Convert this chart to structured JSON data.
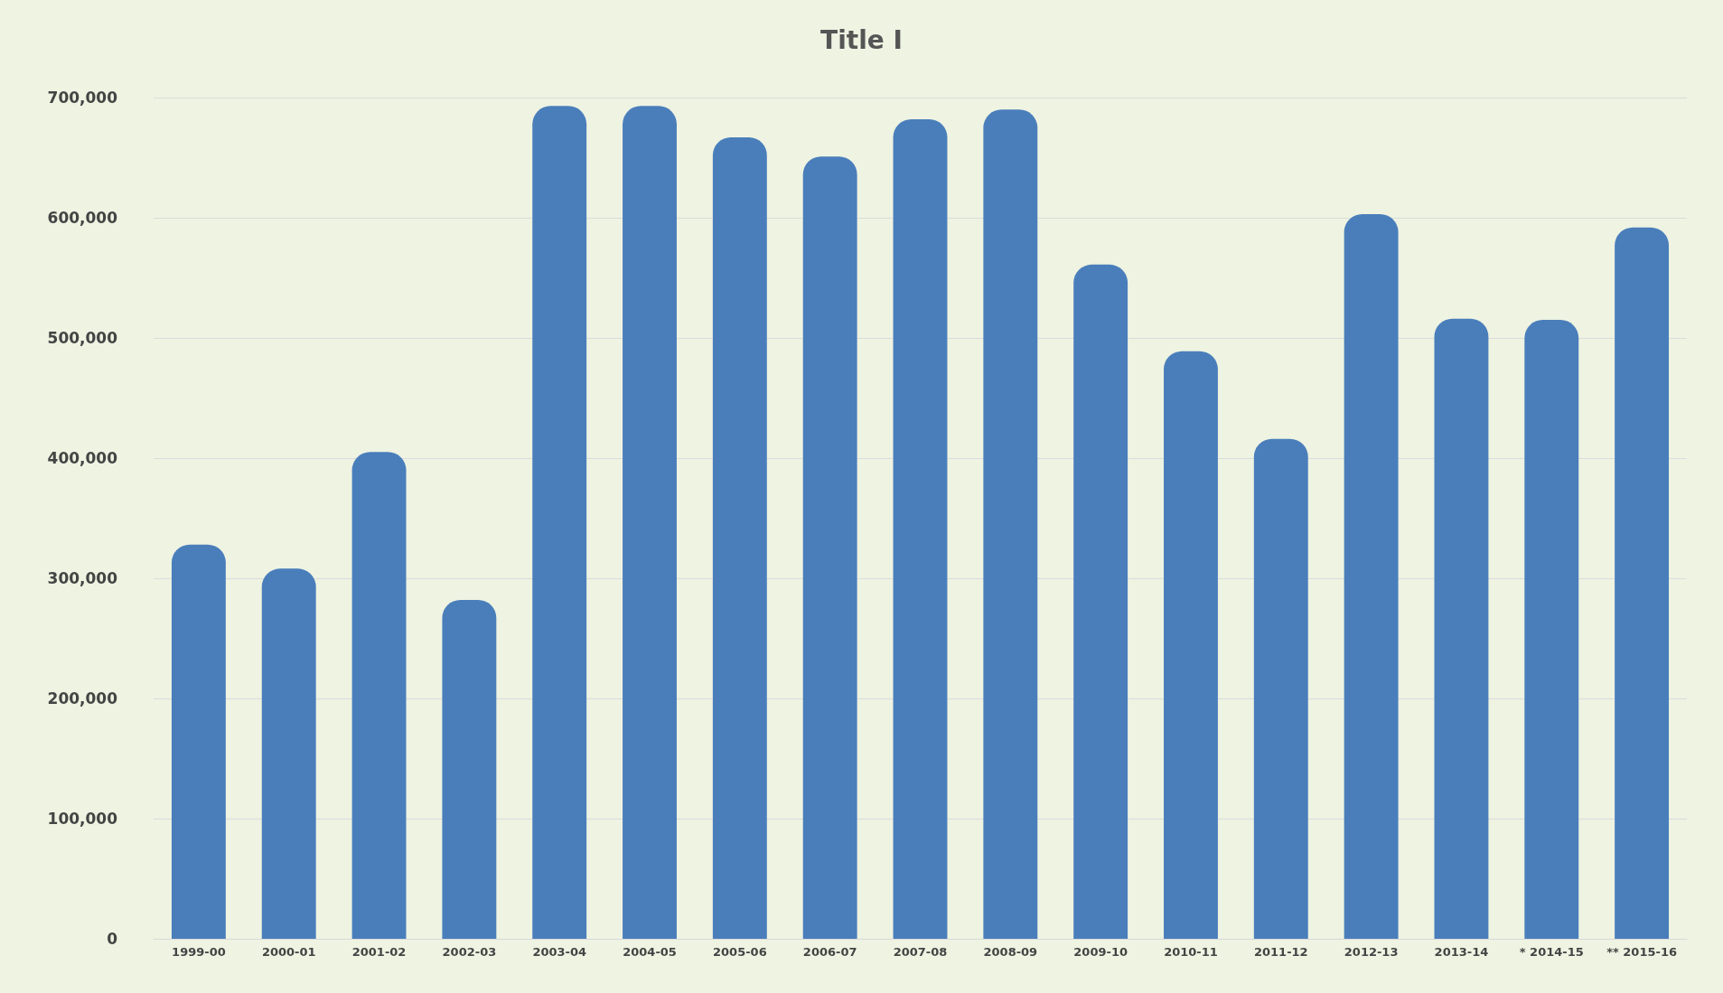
{
  "chart_data": {
    "type": "bar",
    "title": "Title I",
    "categories": [
      "1999-00",
      "2000-01",
      "2001-02",
      "2002-03",
      "2003-04",
      "2004-05",
      "2005-06",
      "2006-07",
      "2007-08",
      "2008-09",
      "2009-10",
      "2010-11",
      "2011-12",
      "2012-13",
      "2013-14",
      "* 2014-15",
      "** 2015-16"
    ],
    "values": [
      328000,
      308000,
      405000,
      282000,
      693000,
      693000,
      667000,
      651000,
      682000,
      690000,
      561000,
      489000,
      416000,
      603000,
      516000,
      515000,
      592000
    ],
    "color": "#4a7ebb",
    "ylim": [
      0,
      700000
    ],
    "yticks": [
      0,
      {
        "value": 100000,
        "label": "100,000"
      },
      {
        "value": 200000,
        "label": "200,000"
      },
      {
        "value": 300000,
        "label": "300,000"
      },
      {
        "value": 400000,
        "label": "400,000"
      },
      {
        "value": 500000,
        "label": "500,000"
      },
      {
        "value": 600000,
        "label": "600,000"
      },
      {
        "value": 700000,
        "label": "700,000"
      }
    ],
    "grid": "y"
  }
}
